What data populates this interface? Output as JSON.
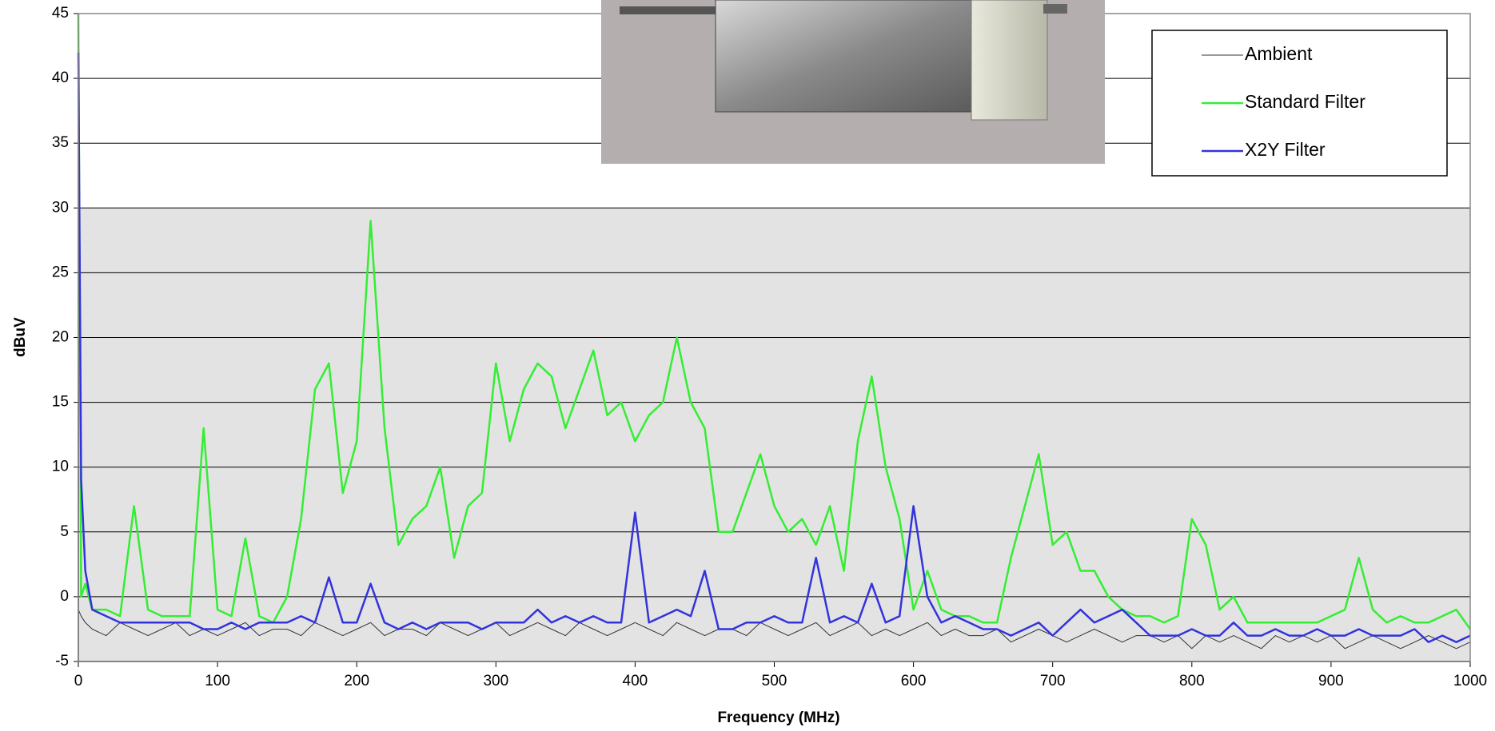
{
  "chart_data": {
    "type": "line",
    "xlabel": "Frequency (MHz)",
    "ylabel": "dBuV",
    "x": [
      0,
      2,
      5,
      10,
      20,
      30,
      40,
      50,
      60,
      70,
      80,
      90,
      100,
      110,
      120,
      130,
      140,
      150,
      160,
      170,
      180,
      190,
      200,
      210,
      220,
      230,
      240,
      250,
      260,
      270,
      280,
      290,
      300,
      310,
      320,
      330,
      340,
      350,
      360,
      370,
      380,
      390,
      400,
      410,
      420,
      430,
      440,
      450,
      460,
      470,
      480,
      490,
      500,
      510,
      520,
      530,
      540,
      550,
      560,
      570,
      580,
      590,
      600,
      610,
      620,
      630,
      640,
      650,
      660,
      670,
      680,
      690,
      700,
      710,
      720,
      730,
      740,
      750,
      760,
      770,
      780,
      790,
      800,
      810,
      820,
      830,
      840,
      850,
      860,
      870,
      880,
      890,
      900,
      910,
      920,
      930,
      940,
      950,
      960,
      970,
      980,
      990,
      1000
    ],
    "series": [
      {
        "name": "Ambient",
        "color": "#333333",
        "width": 1,
        "values": [
          -1,
          -1.5,
          -2,
          -2.5,
          -3,
          -2,
          -2.5,
          -3,
          -2.5,
          -2,
          -3,
          -2.5,
          -3,
          -2.5,
          -2,
          -3,
          -2.5,
          -2.5,
          -3,
          -2,
          -2.5,
          -3,
          -2.5,
          -2,
          -3,
          -2.5,
          -2.5,
          -3,
          -2,
          -2.5,
          -3,
          -2.5,
          -2,
          -3,
          -2.5,
          -2,
          -2.5,
          -3,
          -2,
          -2.5,
          -3,
          -2.5,
          -2,
          -2.5,
          -3,
          -2,
          -2.5,
          -3,
          -2.5,
          -2.5,
          -3,
          -2,
          -2.5,
          -3,
          -2.5,
          -2,
          -3,
          -2.5,
          -2,
          -3,
          -2.5,
          -3,
          -2.5,
          -2,
          -3,
          -2.5,
          -3,
          -3,
          -2.5,
          -3.5,
          -3,
          -2.5,
          -3,
          -3.5,
          -3,
          -2.5,
          -3,
          -3.5,
          -3,
          -3,
          -3.5,
          -3,
          -4,
          -3,
          -3.5,
          -3,
          -3.5,
          -4,
          -3,
          -3.5,
          -3,
          -3.5,
          -3,
          -4,
          -3.5,
          -3,
          -3.5,
          -4,
          -3.5,
          -3,
          -3.5,
          -4,
          -3.5
        ]
      },
      {
        "name": "Standard Filter",
        "color": "#33ee33",
        "width": 2.5,
        "values": [
          45,
          0,
          1,
          -1,
          -1,
          -1.5,
          7,
          -1,
          -1.5,
          -1.5,
          -1.5,
          13,
          -1,
          -1.5,
          4.5,
          -1.5,
          -2,
          0,
          6,
          16,
          18,
          8,
          12,
          29,
          13,
          4,
          6,
          7,
          10,
          3,
          7,
          8,
          18,
          12,
          16,
          18,
          17,
          13,
          16,
          19,
          14,
          15,
          12,
          14,
          15,
          20,
          15,
          13,
          5,
          5,
          8,
          11,
          7,
          5,
          6,
          4,
          7,
          2,
          12,
          17,
          10,
          6,
          -1,
          2,
          -1,
          -1.5,
          -1.5,
          -2,
          -2,
          3,
          7,
          11,
          4,
          5,
          2,
          2,
          0,
          -1,
          -1.5,
          -1.5,
          -2,
          -1.5,
          6,
          4,
          -1,
          0,
          -2,
          -2,
          -2,
          -2,
          -2,
          -2,
          -1.5,
          -1,
          3,
          -1,
          -2,
          -1.5,
          -2,
          -2,
          -1.5,
          -1,
          -2.5
        ]
      },
      {
        "name": "X2Y Filter",
        "color": "#3333dd",
        "width": 2.5,
        "values": [
          42,
          9,
          2,
          -1,
          -1.5,
          -2,
          -2,
          -2,
          -2,
          -2,
          -2,
          -2.5,
          -2.5,
          -2,
          -2.5,
          -2,
          -2,
          -2,
          -1.5,
          -2,
          1.5,
          -2,
          -2,
          1,
          -2,
          -2.5,
          -2,
          -2.5,
          -2,
          -2,
          -2,
          -2.5,
          -2,
          -2,
          -2,
          -1,
          -2,
          -1.5,
          -2,
          -1.5,
          -2,
          -2,
          6.5,
          -2,
          -1.5,
          -1,
          -1.5,
          2,
          -2.5,
          -2.5,
          -2,
          -2,
          -1.5,
          -2,
          -2,
          3,
          -2,
          -1.5,
          -2,
          1,
          -2,
          -1.5,
          7,
          0,
          -2,
          -1.5,
          -2,
          -2.5,
          -2.5,
          -3,
          -2.5,
          -2,
          -3,
          -2,
          -1,
          -2,
          -1.5,
          -1,
          -2,
          -3,
          -3,
          -3,
          -2.5,
          -3,
          -3,
          -2,
          -3,
          -3,
          -2.5,
          -3,
          -3,
          -2.5,
          -3,
          -3,
          -2.5,
          -3,
          -3,
          -3,
          -2.5,
          -3.5,
          -3,
          -3.5,
          -3
        ]
      }
    ],
    "xlim": [
      0,
      1000
    ],
    "xticks": [
      0,
      100,
      200,
      300,
      400,
      500,
      600,
      700,
      800,
      900,
      1000
    ],
    "ylim": [
      -5,
      45
    ],
    "yticks": [
      -5,
      0,
      5,
      10,
      15,
      20,
      25,
      30,
      35,
      40,
      45
    ],
    "grid": true,
    "legend": "upper right"
  }
}
